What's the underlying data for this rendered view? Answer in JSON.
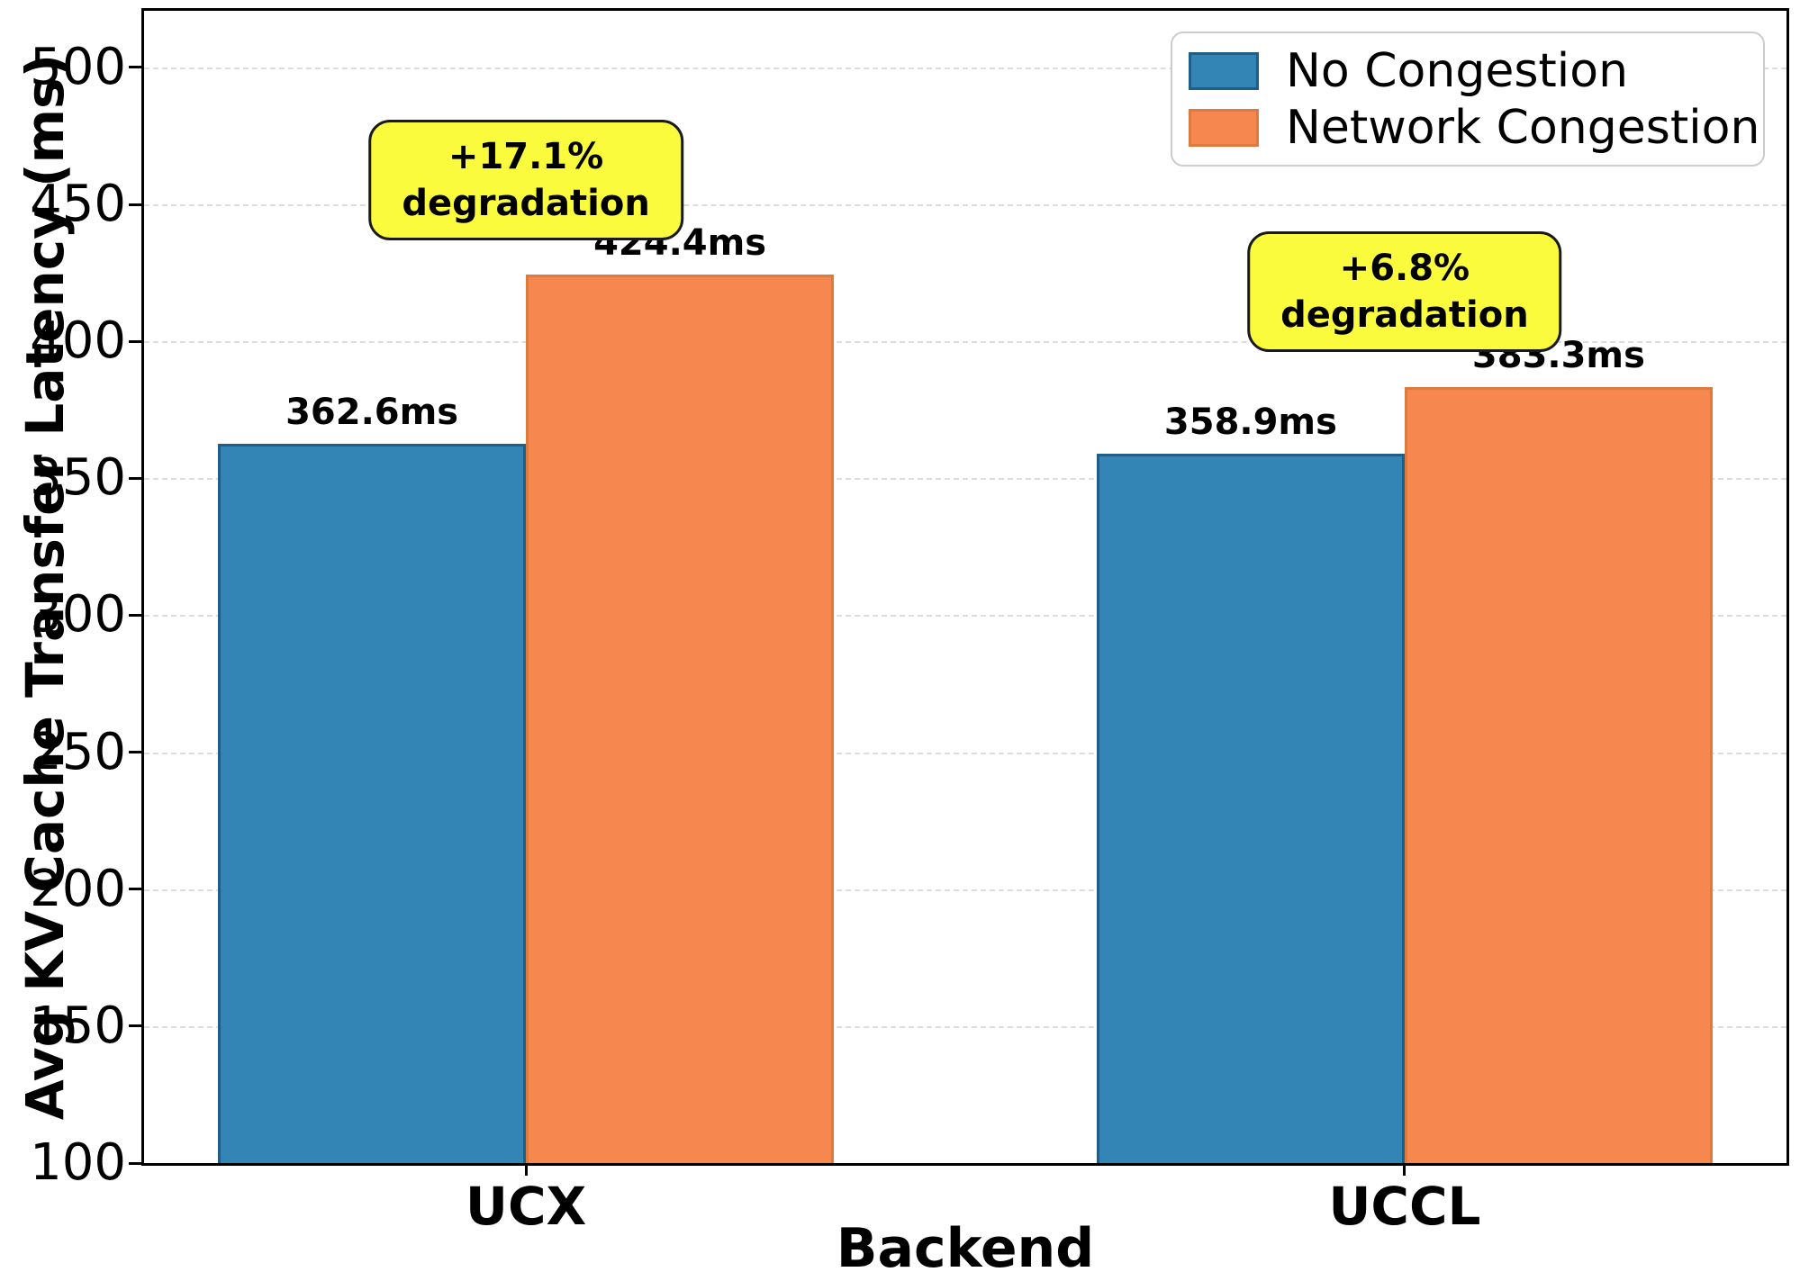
{
  "chart_data": {
    "type": "bar",
    "title": "",
    "xlabel": "Backend",
    "ylabel": "Avg KV Cache Transfer Latency (ms)",
    "categories": [
      "UCX",
      "UCCL"
    ],
    "series": [
      {
        "name": "No Congestion",
        "color": "#3385b5",
        "edge_color": "#1f5f87",
        "values": [
          362.6,
          358.9
        ],
        "value_labels": [
          "362.6ms",
          "358.9ms"
        ]
      },
      {
        "name": "Network Congestion",
        "color": "#f5874f",
        "edge_color": "#de7a3e",
        "values": [
          424.4,
          383.3
        ],
        "value_labels": [
          "424.4ms",
          "383.3ms"
        ]
      }
    ],
    "annotations": [
      {
        "lines": [
          "+17.1%",
          "degradation"
        ],
        "category_index": 0,
        "center_value": 459,
        "bg": "#fbfb3d"
      },
      {
        "lines": [
          "+6.8%",
          "degradation"
        ],
        "category_index": 1,
        "center_value": 418,
        "bg": "#fbfb3d"
      }
    ],
    "ylim": [
      100,
      520.7
    ],
    "yticks": [
      100,
      150,
      200,
      250,
      300,
      350,
      400,
      450,
      500
    ],
    "grid": "horizontal-dashed",
    "gridline_ticks": [
      150,
      200,
      250,
      300,
      350,
      400,
      450,
      500
    ],
    "legend_position": "upper right"
  }
}
